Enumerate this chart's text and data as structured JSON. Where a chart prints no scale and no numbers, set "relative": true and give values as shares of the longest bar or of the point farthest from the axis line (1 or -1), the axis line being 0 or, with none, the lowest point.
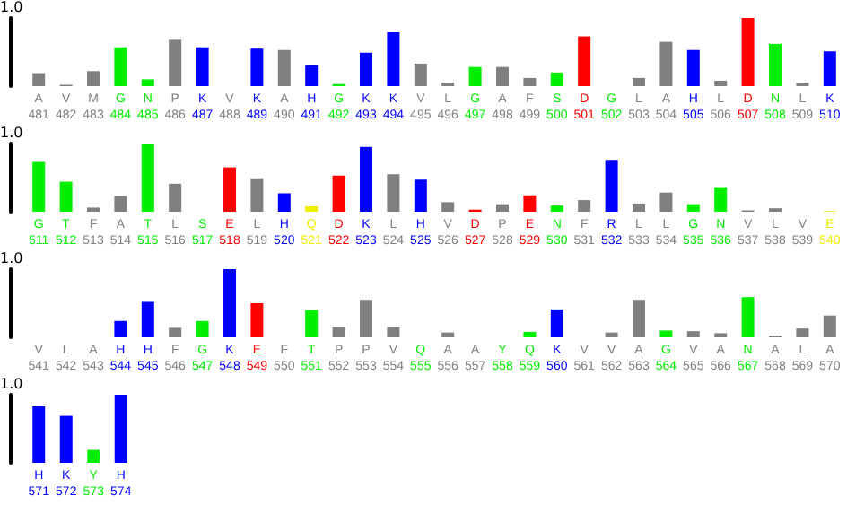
{
  "chart_data": [
    {
      "type": "bar",
      "relative": true,
      "annotations": [
        "1.0"
      ],
      "categories": [
        "A\n481",
        "V\n482",
        "M\n483",
        "G\n484",
        "N\n485",
        "P\n486",
        "K\n487",
        "V\n488",
        "K\n489",
        "A\n490",
        "H\n491",
        "G\n492",
        "K\n493",
        "K\n494",
        "V\n495",
        "L\n496",
        "G\n497",
        "A\n498",
        "F\n499",
        "S\n500",
        "D\n501",
        "G\n502",
        "L\n503",
        "A\n504",
        "H\n505",
        "L\n506",
        "D\n507",
        "N\n508",
        "L\n509",
        "K\n510"
      ],
      "values": [
        0.19,
        0.02,
        0.22,
        0.57,
        0.1,
        0.68,
        0.57,
        0,
        0.55,
        0.53,
        0.31,
        0.03,
        0.49,
        0.79,
        0.33,
        0.05,
        0.28,
        0.28,
        0.12,
        0.2,
        0.73,
        0,
        0.12,
        0.65,
        0.53,
        0.08,
        1,
        0.62,
        0.05,
        0.51
      ],
      "colors": [
        "#808080",
        "#808080",
        "#808080",
        "#00ee00",
        "#00ee00",
        "#808080",
        "#0000ff",
        "#808080",
        "#0000ff",
        "#808080",
        "#0000ff",
        "#00ee00",
        "#0000ff",
        "#0000ff",
        "#808080",
        "#808080",
        "#00ee00",
        "#808080",
        "#808080",
        "#00ee00",
        "#ff0000",
        "#00ee00",
        "#808080",
        "#808080",
        "#0000ff",
        "#808080",
        "#ff0000",
        "#00ee00",
        "#808080",
        "#0000ff"
      ]
    },
    {
      "type": "bar",
      "relative": true,
      "annotations": [
        "1.0"
      ],
      "categories": [
        "G\n511",
        "T\n512",
        "F\n513",
        "A\n514",
        "T\n515",
        "L\n516",
        "S\n517",
        "E\n518",
        "L\n519",
        "H\n520",
        "Q\n521",
        "D\n522",
        "K\n523",
        "L\n524",
        "H\n525",
        "V\n526",
        "D\n527",
        "P\n528",
        "E\n529",
        "N\n530",
        "F\n531",
        "R\n532",
        "L\n533",
        "L\n534",
        "G\n535",
        "N\n536",
        "V\n537",
        "L\n538",
        "V\n539",
        "E\n540"
      ],
      "values": [
        0.73,
        0.44,
        0.06,
        0.23,
        1,
        0.41,
        0,
        0.65,
        0.49,
        0.27,
        0.08,
        0.53,
        0.95,
        0.55,
        0.47,
        0.14,
        0.03,
        0.11,
        0.24,
        0.09,
        0.17,
        0.76,
        0.12,
        0.28,
        0.11,
        0.36,
        0.02,
        0.05,
        0,
        0.01
      ],
      "colors": [
        "#00ee00",
        "#00ee00",
        "#808080",
        "#808080",
        "#00ee00",
        "#808080",
        "#00ee00",
        "#ff0000",
        "#808080",
        "#0000ff",
        "#eeee00",
        "#ff0000",
        "#0000ff",
        "#808080",
        "#0000ff",
        "#808080",
        "#ff0000",
        "#808080",
        "#ff0000",
        "#00ee00",
        "#808080",
        "#0000ff",
        "#808080",
        "#808080",
        "#00ee00",
        "#00ee00",
        "#808080",
        "#808080",
        "#808080",
        "#eeee00"
      ]
    },
    {
      "type": "bar",
      "relative": true,
      "annotations": [
        "1.0"
      ],
      "categories": [
        "V\n541",
        "L\n542",
        "A\n543",
        "H\n544",
        "H\n545",
        "F\n546",
        "G\n547",
        "K\n548",
        "E\n549",
        "F\n550",
        "T\n551",
        "P\n552",
        "P\n553",
        "V\n554",
        "Q\n555",
        "A\n556",
        "A\n557",
        "Y\n558",
        "Q\n559",
        "K\n560",
        "V\n561",
        "V\n562",
        "A\n563",
        "G\n564",
        "V\n565",
        "A\n566",
        "N\n567",
        "A\n568",
        "L\n569",
        "A\n570"
      ],
      "values": [
        0,
        0,
        0,
        0.24,
        0.52,
        0.14,
        0.24,
        1,
        0.5,
        0,
        0.4,
        0.15,
        0.55,
        0.15,
        0,
        0.07,
        0,
        0,
        0.08,
        0.41,
        0,
        0.07,
        0.55,
        0.1,
        0.09,
        0.06,
        0.59,
        0.02,
        0.13,
        0.32
      ],
      "colors": [
        "#808080",
        "#808080",
        "#808080",
        "#0000ff",
        "#0000ff",
        "#808080",
        "#00ee00",
        "#0000ff",
        "#ff0000",
        "#808080",
        "#00ee00",
        "#808080",
        "#808080",
        "#808080",
        "#00ee00",
        "#808080",
        "#808080",
        "#00ee00",
        "#00ee00",
        "#0000ff",
        "#808080",
        "#808080",
        "#808080",
        "#00ee00",
        "#808080",
        "#808080",
        "#00ee00",
        "#808080",
        "#808080",
        "#808080"
      ]
    },
    {
      "type": "bar",
      "relative": true,
      "annotations": [
        "1.0"
      ],
      "categories": [
        "H\n571",
        "K\n572",
        "Y\n573",
        "H\n574"
      ],
      "values": [
        0.83,
        0.69,
        0.19,
        1
      ],
      "colors": [
        "#0000ff",
        "#0000ff",
        "#00ee00",
        "#0000ff"
      ]
    }
  ]
}
